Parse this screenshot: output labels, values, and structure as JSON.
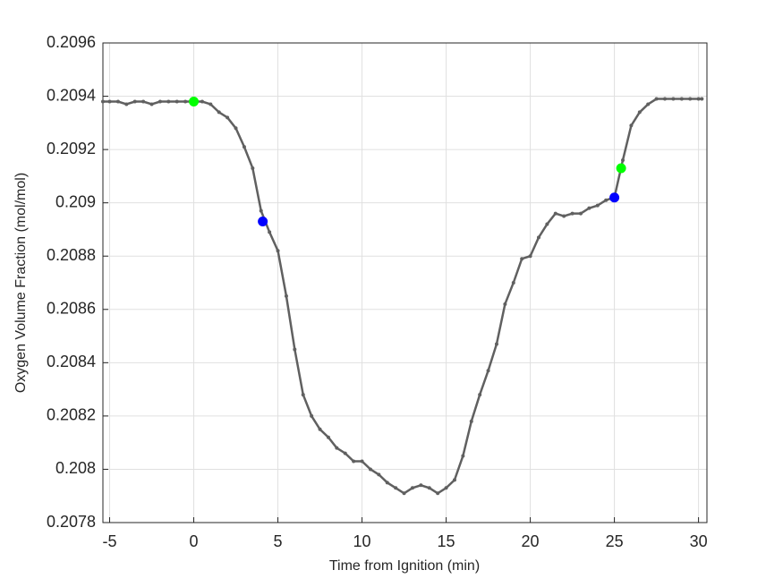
{
  "chart_data": {
    "type": "line",
    "xlabel": "Time from Ignition (min)",
    "ylabel": "Oxygen Volume Fraction (mol/mol)",
    "xlim": [
      -5.4,
      30.5
    ],
    "xticks": [
      -5,
      0,
      5,
      10,
      15,
      20,
      25,
      30
    ],
    "ylim": [
      0.2078,
      0.2096
    ],
    "yticks": [
      0.2078,
      0.208,
      0.2082,
      0.2084,
      0.2086,
      0.2088,
      0.209,
      0.2092,
      0.2094,
      0.2096
    ],
    "grid": true,
    "series": [
      {
        "color": "#606060",
        "style": "line",
        "x": [
          -5.4,
          -5,
          -4.5,
          -4,
          -3.5,
          -3,
          -2.5,
          -2,
          -1.5,
          -1,
          -0.5,
          0,
          0.5,
          1,
          1.5,
          2,
          2.5,
          3,
          3.5,
          4,
          4.5,
          5,
          5.5,
          6,
          6.5,
          7,
          7.5,
          8,
          8.5,
          9,
          9.5,
          10,
          10.5,
          11,
          11.5,
          12,
          12.5,
          13,
          13.5,
          14,
          14.5,
          15,
          15.5,
          16,
          16.5,
          17,
          17.5,
          18,
          18.5,
          19,
          19.5,
          20,
          20.5,
          21,
          21.5,
          22,
          22.5,
          23,
          23.5,
          24,
          24.5,
          25,
          25.5,
          26,
          26.5,
          27,
          27.5,
          28,
          28.5,
          29,
          29.5,
          30,
          30.2
        ],
        "values": [
          0.20938,
          0.20938,
          0.20938,
          0.20937,
          0.20938,
          0.20938,
          0.20937,
          0.20938,
          0.20938,
          0.20938,
          0.20938,
          0.20938,
          0.20938,
          0.20937,
          0.20934,
          0.20932,
          0.20928,
          0.20921,
          0.20913,
          0.20897,
          0.20889,
          0.20882,
          0.20865,
          0.20845,
          0.20828,
          0.2082,
          0.20815,
          0.20812,
          0.20808,
          0.20806,
          0.20803,
          0.20803,
          0.208,
          0.20798,
          0.20795,
          0.20793,
          0.20791,
          0.20793,
          0.20794,
          0.20793,
          0.20791,
          0.20793,
          0.20796,
          0.20805,
          0.20818,
          0.20828,
          0.20837,
          0.20847,
          0.20862,
          0.2087,
          0.20879,
          0.2088,
          0.20887,
          0.20892,
          0.20896,
          0.20895,
          0.20896,
          0.20896,
          0.20898,
          0.20899,
          0.20901,
          0.20902,
          0.20916,
          0.20929,
          0.20934,
          0.20937,
          0.20939,
          0.20939,
          0.20939,
          0.20939,
          0.20939,
          0.20939,
          0.20939
        ]
      },
      {
        "color": "#00ff00",
        "style": "marker",
        "x": [
          0,
          25.4
        ],
        "values": [
          0.20938,
          0.20913
        ]
      },
      {
        "color": "#0000ff",
        "style": "marker",
        "x": [
          4.1,
          25
        ],
        "values": [
          0.20893,
          0.20902
        ]
      }
    ]
  }
}
